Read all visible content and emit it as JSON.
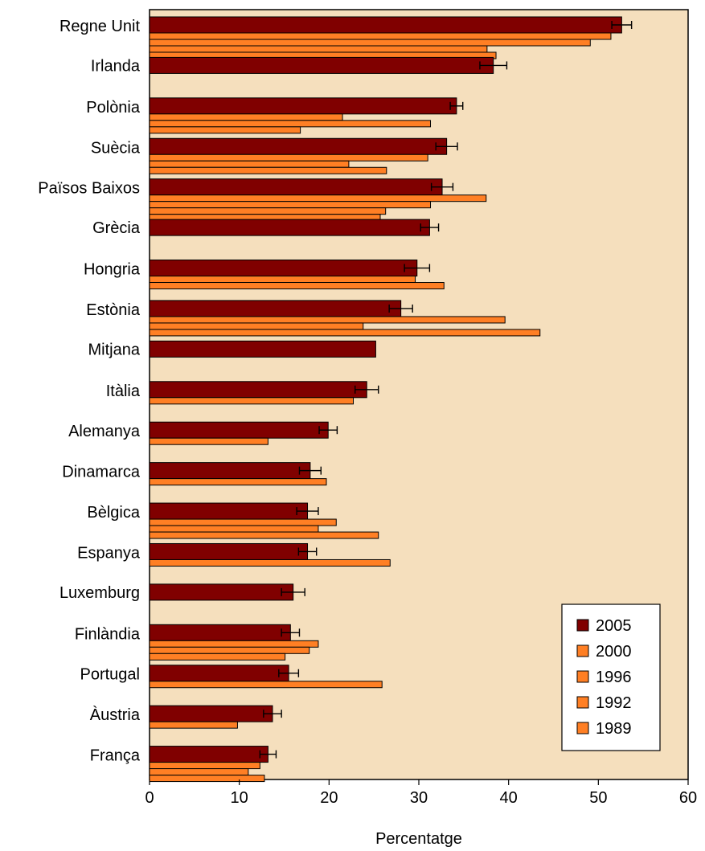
{
  "chart_data": {
    "type": "bar",
    "orientation": "horizontal",
    "xlabel": "Percentatge",
    "xlim": [
      0,
      60
    ],
    "xticks": [
      0,
      10,
      20,
      30,
      40,
      50,
      60
    ],
    "background": "#f5dfbd",
    "colors": {
      "2005": "#800000",
      "2000": "#ff7f24",
      "1996": "#ff7f24",
      "1992": "#ff7f24",
      "1989": "#ff7f24"
    },
    "legend": {
      "position": "lower-right",
      "entries": [
        "2005",
        "2000",
        "1996",
        "1992",
        "1989"
      ]
    },
    "categories": [
      "Regne Unit",
      "Irlanda",
      "Polònia",
      "Suècia",
      "Països Baixos",
      "Grècia",
      "Hongria",
      "Estònia",
      "Mitjana",
      "Itàlia",
      "Alemanya",
      "Dinamarca",
      "Bèlgica",
      "Espanya",
      "Luxemburg",
      "Finlàndia",
      "Portugal",
      "Àustria",
      "França"
    ],
    "series": [
      {
        "name": "2005",
        "values": [
          52.6,
          38.3,
          34.2,
          33.1,
          32.6,
          31.2,
          29.8,
          28.0,
          25.2,
          24.2,
          19.9,
          17.9,
          17.6,
          17.6,
          16.0,
          15.7,
          15.5,
          13.7,
          13.2
        ],
        "errors": [
          1.1,
          1.5,
          0.7,
          1.2,
          1.2,
          1.0,
          1.4,
          1.3,
          null,
          1.3,
          1.0,
          1.2,
          1.2,
          1.0,
          1.3,
          1.0,
          1.1,
          1.0,
          0.9
        ]
      },
      {
        "name": "2000",
        "values": [
          51.4,
          null,
          21.5,
          31.0,
          37.5,
          null,
          29.6,
          39.6,
          null,
          22.7,
          13.2,
          19.7,
          20.8,
          26.8,
          null,
          18.8,
          25.9,
          9.8,
          12.3
        ]
      },
      {
        "name": "1996",
        "values": [
          49.1,
          null,
          31.3,
          22.2,
          31.3,
          null,
          32.8,
          23.8,
          null,
          null,
          null,
          null,
          18.8,
          null,
          null,
          17.8,
          null,
          null,
          11.0
        ]
      },
      {
        "name": "1992",
        "values": [
          37.6,
          null,
          16.8,
          26.4,
          26.3,
          null,
          null,
          43.5,
          null,
          null,
          null,
          null,
          25.5,
          null,
          null,
          15.1,
          null,
          null,
          12.8
        ]
      },
      {
        "name": "1989",
        "values": [
          38.6,
          null,
          null,
          null,
          25.7,
          null,
          null,
          null,
          null,
          null,
          null,
          null,
          null,
          null,
          null,
          null,
          null,
          null,
          null
        ]
      }
    ]
  }
}
